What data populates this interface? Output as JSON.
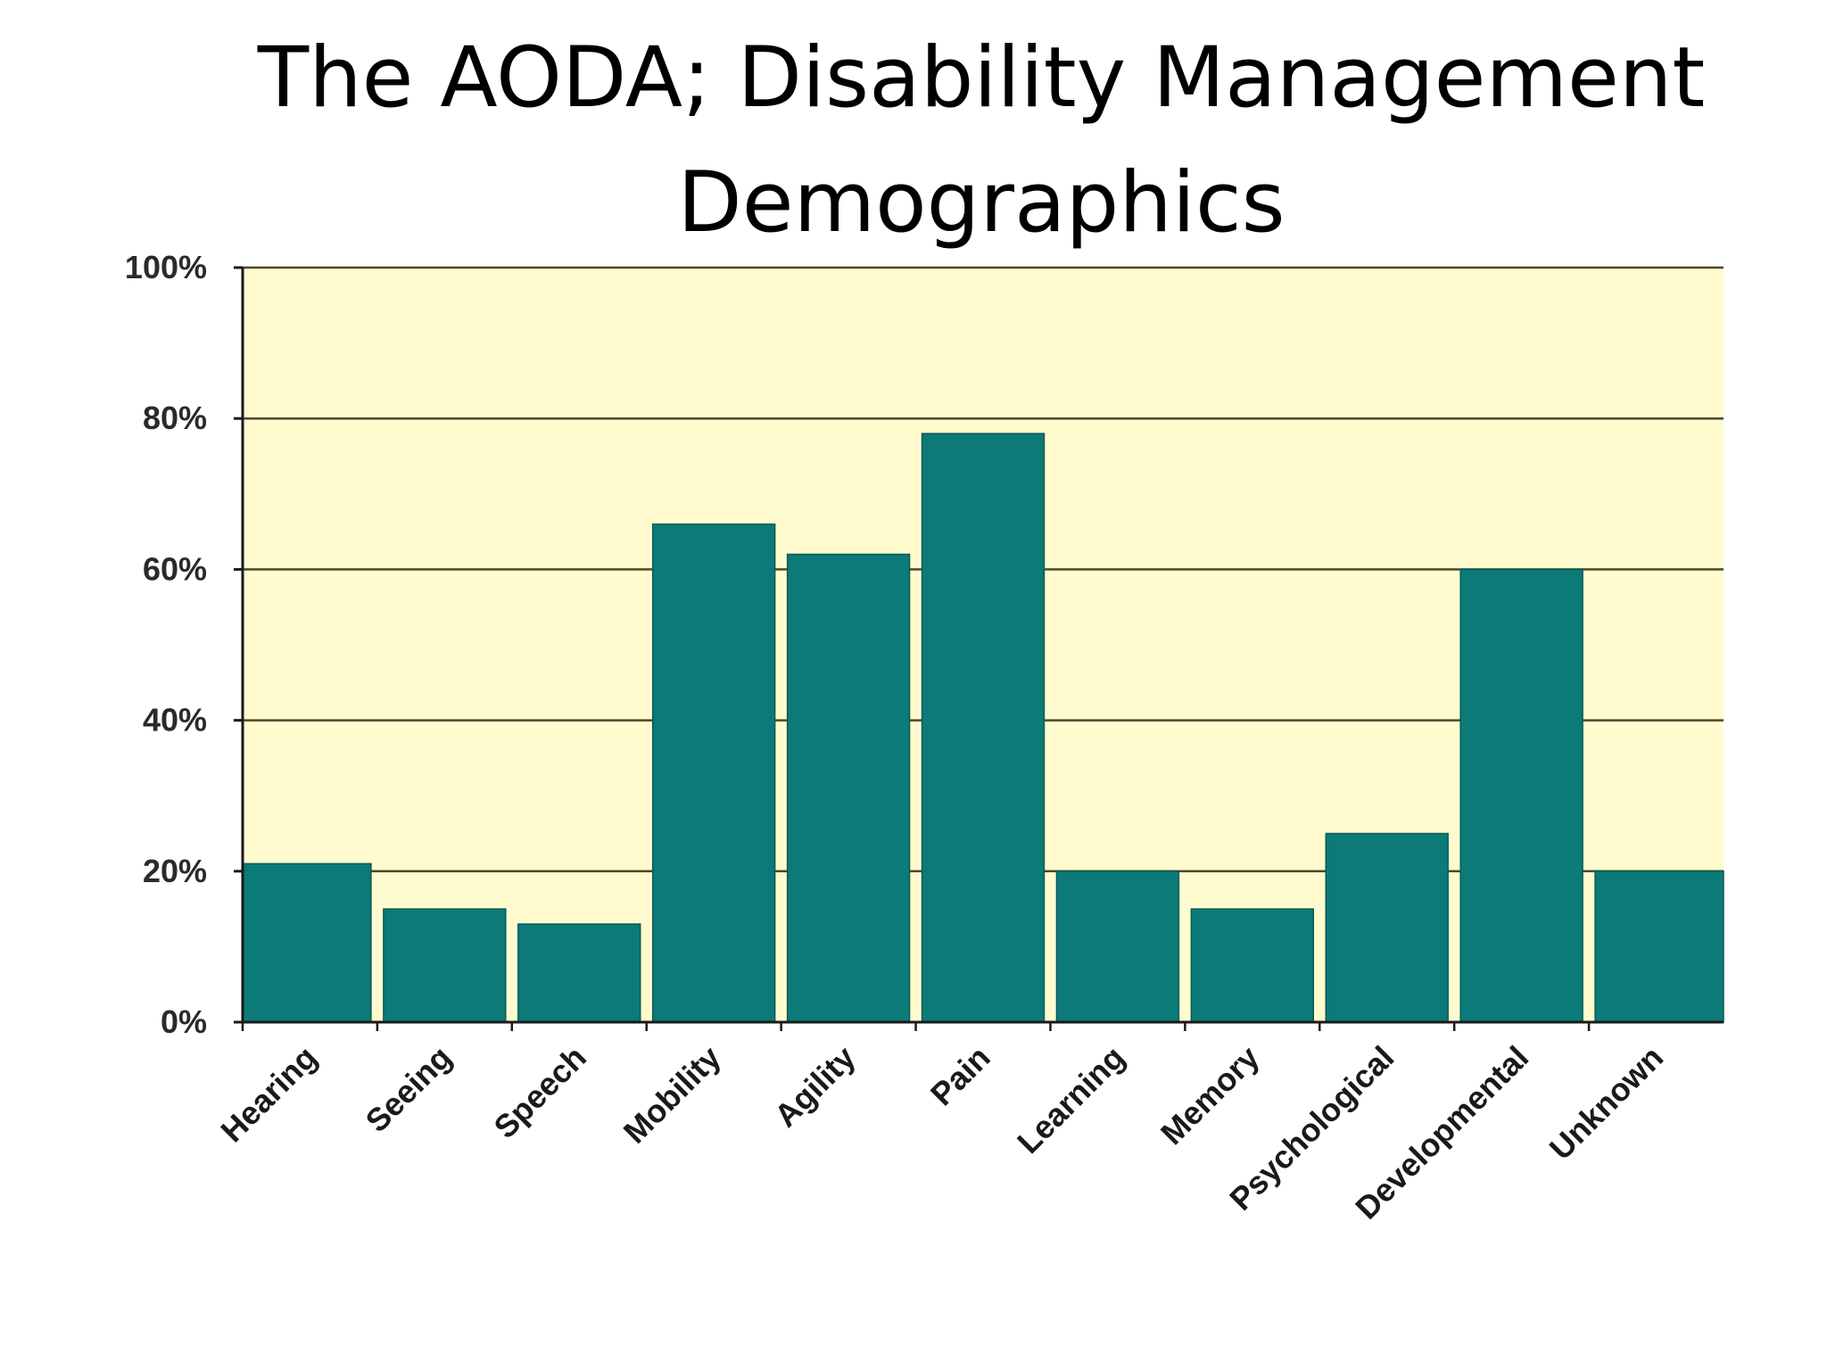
{
  "slide": {
    "title_line1": "The AODA; Disability Management",
    "title_line2": "Demographics"
  },
  "chart_data": {
    "type": "bar",
    "categories": [
      "Hearing",
      "Seeing",
      "Speech",
      "Mobility",
      "Agility",
      "Pain",
      "Learning",
      "Memory",
      "Psychological",
      "Developmental",
      "Unknown"
    ],
    "values": [
      21,
      15,
      13,
      66,
      62,
      78,
      20,
      15,
      25,
      60,
      20
    ],
    "ylim": [
      0,
      100
    ],
    "yticks": [
      "0%",
      "20%",
      "40%",
      "60%",
      "80%",
      "100%"
    ],
    "title": "",
    "xlabel": "",
    "ylabel": "",
    "grid": true,
    "legend": "none",
    "colors": {
      "bar": "#0b7a78",
      "plot_background": "#fffbcf",
      "gridline": "#4a4a2a",
      "axis": "#1a1a1a"
    }
  }
}
